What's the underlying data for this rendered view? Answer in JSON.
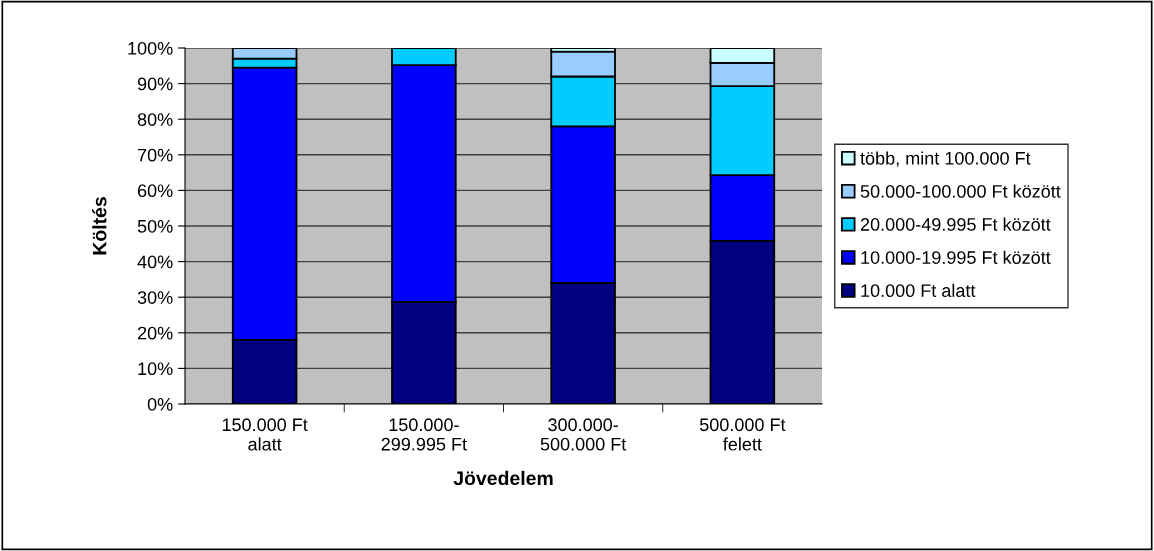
{
  "chart_data": {
    "type": "bar",
    "stacked": true,
    "xlabel": "Jövedelem",
    "ylabel": "Költés",
    "categories": [
      "150.000 Ft\nalatt",
      "150.000-\n299.995 Ft",
      "300.000-\n500.000 Ft",
      "500.000 Ft\nfelett"
    ],
    "series": [
      {
        "name": "10.000 Ft alatt",
        "color": "#000080",
        "values": [
          18,
          28.7,
          34,
          45.8
        ]
      },
      {
        "name": "10.000-19.995 Ft között",
        "color": "#0000ff",
        "values": [
          76.5,
          66.5,
          44,
          18.5
        ]
      },
      {
        "name": "20.000-49.995 Ft között",
        "color": "#00ccff",
        "values": [
          2.5,
          4.8,
          14,
          25
        ]
      },
      {
        "name": "50.000-100.000 Ft között",
        "color": "#99ccff",
        "values": [
          3,
          null,
          7,
          6.5
        ]
      },
      {
        "name": "több, mint 100.000 Ft",
        "color": "#ccffff",
        "values": [
          null,
          null,
          1,
          4.2
        ]
      }
    ],
    "ylim": [
      0,
      100
    ],
    "yticks": [
      {
        "value": 0,
        "label": "0%"
      },
      {
        "value": 10,
        "label": "10%"
      },
      {
        "value": 20,
        "label": "20%"
      },
      {
        "value": 30,
        "label": "30%"
      },
      {
        "value": 40,
        "label": "40%"
      },
      {
        "value": 50,
        "label": "50%"
      },
      {
        "value": 60,
        "label": "60%"
      },
      {
        "value": 70,
        "label": "70%"
      },
      {
        "value": 80,
        "label": "80%"
      },
      {
        "value": 90,
        "label": "90%"
      },
      {
        "value": 100,
        "label": "100%"
      }
    ],
    "grid": "y",
    "legend": "right"
  }
}
